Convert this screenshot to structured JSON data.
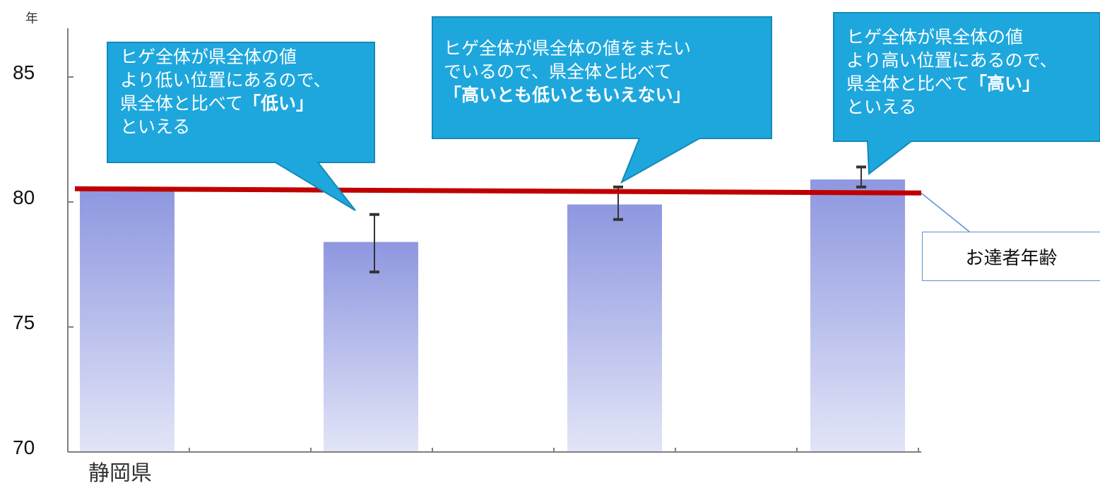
{
  "chart_data": {
    "type": "bar",
    "y_unit": "年",
    "ylim": [
      70,
      86.5
    ],
    "yticks": [
      70,
      75,
      80,
      85
    ],
    "categories": [
      "静岡県",
      "",
      "",
      ""
    ],
    "values": [
      80.5,
      78.4,
      79.9,
      80.9
    ],
    "error_bars": [
      null,
      [
        77.2,
        79.5
      ],
      [
        79.3,
        80.6
      ],
      [
        80.6,
        81.4
      ]
    ],
    "reference_line": {
      "value": 80.5,
      "label": "お達者年齢",
      "color": "#c00000"
    },
    "bar_color_top": "#8e97e0",
    "bar_color_bottom": "#dfe2f6",
    "grid": false
  },
  "callouts": [
    {
      "line1": "ヒゲ全体が県全体の値",
      "line2": "より低い位置にあるので、",
      "line3_plain": "県全体と比べて",
      "line3_bold": "「低い」",
      "line4": "といえる"
    },
    {
      "line1": "ヒゲ全体が県全体の値をまたい",
      "line2": "でいるので、県全体と比べて",
      "line3_bold": "「高いとも低いともいえない」"
    },
    {
      "line1": "ヒゲ全体が県全体の値",
      "line2": "より高い位置にあるので、",
      "line3_plain": "県全体と比べて",
      "line3_bold": "「高い」",
      "line4": "といえる"
    }
  ],
  "colors": {
    "callout": "#1ea7dd",
    "callout_border": "#1689b8",
    "axis": "#7f7f7f",
    "error_bar": "#333333"
  }
}
